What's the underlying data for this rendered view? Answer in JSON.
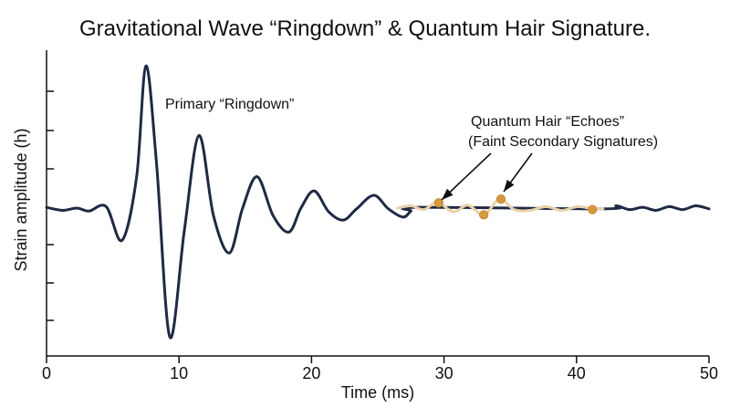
{
  "chart_data": {
    "type": "line",
    "title": "Gravitational Wave “Ringdown” & Quantum Hair Signature.",
    "xlabel": "Time (ms)",
    "ylabel": "Strain amplitude (h)",
    "xlim": [
      0,
      50
    ],
    "x_ticks": [
      "0",
      "10",
      "20",
      "30",
      "40",
      "50"
    ],
    "grid": false,
    "legend": "none",
    "colors": {
      "primary": "#1f2a44",
      "echo": "#e8d1a8",
      "echo_point": "#d39a3f"
    },
    "series": [
      {
        "role": "primary",
        "x": [
          0,
          1.2,
          2.3,
          3.2,
          4.5,
          5.7,
          6.8,
          7.5,
          8.3,
          9.3,
          10.4,
          11.5,
          12.6,
          13.8,
          14.8,
          15.9,
          17.1,
          18.3,
          19.2,
          20.2,
          21.3,
          22.4,
          23.4,
          24.7,
          25.8,
          26.9,
          27.5,
          28.0,
          42.0,
          43.0,
          44.0,
          45.0,
          46.0,
          47.0,
          48.0,
          49.0,
          50.0
        ],
        "y": [
          0.01,
          -0.03,
          0.0,
          -0.04,
          0.02,
          -0.43,
          0.42,
          1.9,
          0.6,
          -1.72,
          -0.3,
          0.97,
          -0.1,
          -0.6,
          0.0,
          0.42,
          -0.1,
          -0.32,
          0.0,
          0.23,
          -0.05,
          -0.16,
          -0.01,
          0.17,
          -0.01,
          -0.12,
          -0.04,
          0.01,
          -0.01,
          0.03,
          -0.02,
          0.01,
          -0.03,
          0.02,
          -0.02,
          0.03,
          -0.01
        ]
      },
      {
        "role": "quantum-hair-echoes",
        "x": [
          26.5,
          27.5,
          28.5,
          29.5,
          30.7,
          31.8,
          33.0,
          34.2,
          35.3,
          36.5,
          37.7,
          38.9,
          40.1,
          41.2,
          42.0
        ],
        "y": [
          0.0,
          0.03,
          -0.02,
          0.08,
          -0.05,
          0.04,
          -0.09,
          0.12,
          -0.02,
          -0.03,
          0.02,
          -0.03,
          0.02,
          -0.01,
          -0.01
        ]
      }
    ],
    "highlight_points": [
      {
        "x": 29.6,
        "y": 0.07
      },
      {
        "x": 33.0,
        "y": -0.09
      },
      {
        "x": 34.3,
        "y": 0.12
      },
      {
        "x": 41.2,
        "y": -0.02
      }
    ],
    "annotations": [
      "Primary “Ringdown”",
      "Quantum Hair “Echoes”",
      "(Faint Secondary Signatures)"
    ]
  }
}
